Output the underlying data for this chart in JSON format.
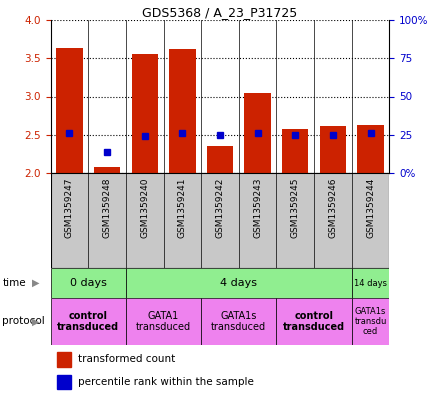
{
  "title": "GDS5368 / A_23_P31725",
  "samples": [
    "GSM1359247",
    "GSM1359248",
    "GSM1359240",
    "GSM1359241",
    "GSM1359242",
    "GSM1359243",
    "GSM1359245",
    "GSM1359246",
    "GSM1359244"
  ],
  "red_values": [
    3.63,
    2.08,
    3.55,
    3.62,
    2.35,
    3.05,
    2.58,
    2.62,
    2.63
  ],
  "blue_values_pct": [
    26,
    14,
    24,
    26,
    25,
    26,
    25,
    25,
    26
  ],
  "ylim": [
    2.0,
    4.0
  ],
  "yticks_left": [
    2.0,
    2.5,
    3.0,
    3.5,
    4.0
  ],
  "yticks_right": [
    0,
    25,
    50,
    75,
    100
  ],
  "bar_color": "#cc2200",
  "dot_color": "#0000cc",
  "sample_bg": "#c8c8c8",
  "time_color": "#90ee90",
  "protocol_color": "#ee82ee",
  "label_color_left": "#cc2200",
  "label_color_right": "#0000cc",
  "time_groups": [
    {
      "label": "0 days",
      "start": 0,
      "end": 2
    },
    {
      "label": "4 days",
      "start": 2,
      "end": 8
    },
    {
      "label": "14 days",
      "start": 8,
      "end": 9
    }
  ],
  "protocol_groups": [
    {
      "label": "control\ntransduced",
      "start": 0,
      "end": 2,
      "bold": true
    },
    {
      "label": "GATA1\ntransduced",
      "start": 2,
      "end": 4,
      "bold": false
    },
    {
      "label": "GATA1s\ntransduced",
      "start": 4,
      "end": 6,
      "bold": false
    },
    {
      "label": "control\ntransduced",
      "start": 6,
      "end": 8,
      "bold": true
    },
    {
      "label": "GATA1s\ntransdu\nced",
      "start": 8,
      "end": 9,
      "bold": false
    }
  ]
}
